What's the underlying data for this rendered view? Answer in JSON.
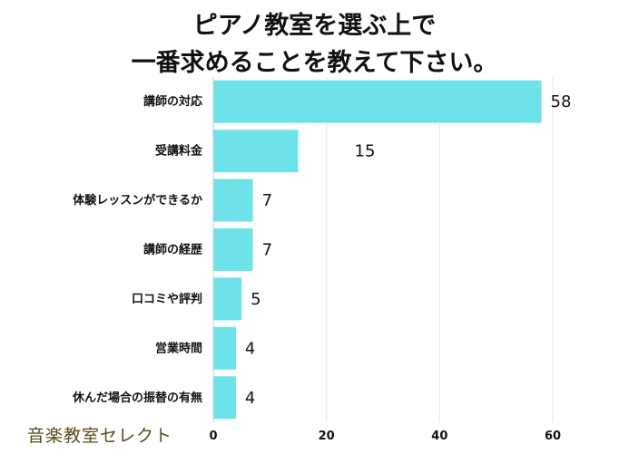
{
  "title_line1": "ピアノ教室を選ぶ上で",
  "title_line2": "一番求めることを教えて下さい。",
  "brand": "音楽教室セレクト",
  "colors": {
    "bar": "#6de3e9",
    "grid": "#e6e6e6",
    "text": "#111111"
  },
  "chart_data": {
    "type": "bar",
    "orientation": "horizontal",
    "categories": [
      "講師の対応",
      "受講料金",
      "体験レッスンができるか",
      "講師の経歴",
      "口コミや評判",
      "営業時間",
      "休んだ場合の振替の有無"
    ],
    "values": [
      58,
      15,
      7,
      7,
      5,
      4,
      4
    ],
    "x_ticks": [
      0,
      20,
      40,
      60
    ],
    "xlim": [
      0,
      60
    ],
    "grid": true,
    "legend": "none"
  }
}
